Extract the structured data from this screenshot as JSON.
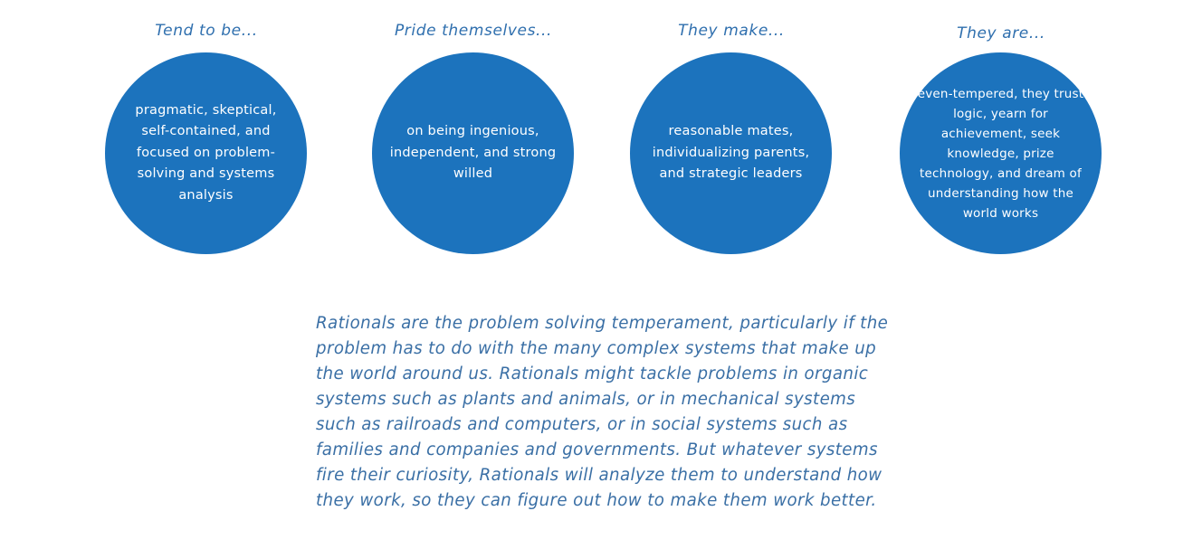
{
  "columns": [
    {
      "heading": "Tend to be...",
      "text": "pragmatic, skeptical, self-contained, and focused on problem-solving and systems analysis"
    },
    {
      "heading": "Pride themselves...",
      "text": "on being ingenious, independent, and strong willed"
    },
    {
      "heading": "They make...",
      "text": "reasonable mates, individualizing parents, and strategic leaders"
    },
    {
      "heading": "They are...",
      "text": "even-tempered, they trust logic, yearn for achievement, seek knowledge, prize technology, and dream of understanding how the world works"
    }
  ],
  "description": "Rationals are the problem solving temperament, particularly if the problem has to do with the many complex systems that make up the world around us. Rationals might tackle problems in organic systems such as plants and animals, or in mechanical systems such as railroads and computers, or in social systems such as families and companies and governments. But whatever systems fire their curiosity, Rationals will analyze them to understand how they work, so they can figure out how to make them work better.",
  "colors": {
    "circle": "#1c73bd",
    "heading": "#2f6fae",
    "paragraph": "#3a6fa5"
  }
}
